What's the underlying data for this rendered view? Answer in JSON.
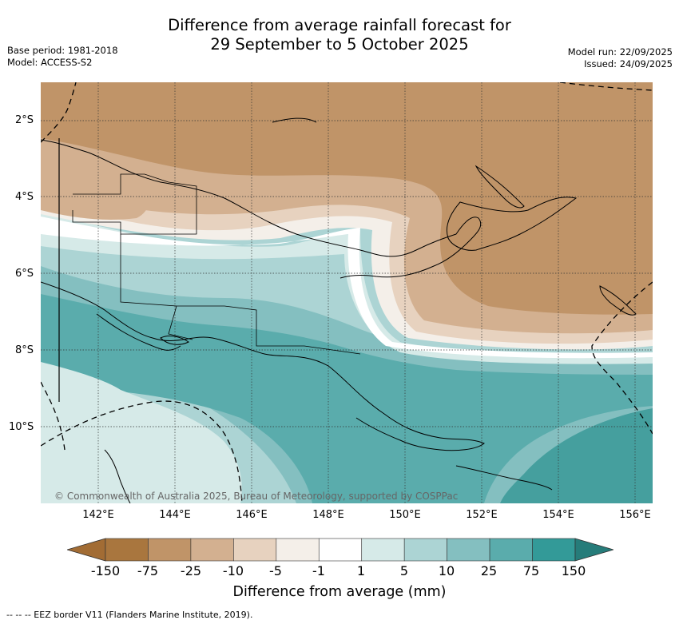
{
  "title_line1": "Difference from average rainfall forecast for",
  "title_line2": "29 September to 5 October 2025",
  "base_period": "Base period: 1981-2018",
  "model": "Model: ACCESS-S2",
  "model_run": "Model run: 22/09/2025",
  "issued": "Issued: 24/09/2025",
  "copyright": "© Commonwealth of Australia 2025, Bureau of Meteorology, supported by COSPPac",
  "lat_labels": [
    "2°S",
    "4°S",
    "6°S",
    "8°S",
    "10°S"
  ],
  "lon_labels": [
    "142°E",
    "144°E",
    "146°E",
    "148°E",
    "150°E",
    "152°E",
    "154°E",
    "156°E"
  ],
  "colorbar": {
    "label": "Difference from average (mm)",
    "ticks": [
      "-150",
      "-75",
      "-25",
      "-10",
      "-5",
      "-1",
      "1",
      "5",
      "10",
      "25",
      "75",
      "150"
    ],
    "colors": [
      "#a26c34",
      "#a9763e",
      "#c09468",
      "#d3b090",
      "#e7d2bf",
      "#f4efe9",
      "#ffffff",
      "#d6eae8",
      "#acd4d4",
      "#84bfc0",
      "#5aacac",
      "#339a98",
      "#267c7a"
    ]
  },
  "footer": "--  --  -- EEZ border V11 (Flanders Marine Institute, 2019)."
}
